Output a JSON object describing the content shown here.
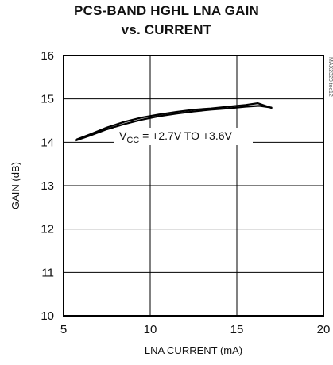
{
  "chart_data": {
    "type": "line",
    "title_line1": "PCS-BAND HGHL LNA GAIN",
    "title_line2": "vs. CURRENT",
    "xlabel": "LNA CURRENT (mA)",
    "ylabel": "GAIN (dB)",
    "xlim": [
      5,
      20
    ],
    "ylim": [
      10,
      16
    ],
    "x_ticks": [
      "5",
      "10",
      "15",
      "20"
    ],
    "y_ticks": [
      "10",
      "11",
      "12",
      "13",
      "14",
      "15",
      "16"
    ],
    "grid": true,
    "annotation": {
      "prefix": "V",
      "subscript": "CC",
      "suffix": " = +2.7V TO +3.6V"
    },
    "side_code": "MAX2320 toc12",
    "series": [
      {
        "x": [
          5.7,
          6.5,
          7.5,
          8.5,
          9.5,
          10.5,
          11.5,
          12.5,
          13.5,
          14.5,
          15.5,
          16.3,
          17.0
        ],
        "y": [
          14.04,
          14.15,
          14.3,
          14.42,
          14.52,
          14.6,
          14.66,
          14.71,
          14.75,
          14.78,
          14.82,
          14.84,
          14.8
        ]
      },
      {
        "x": [
          5.7,
          6.5,
          7.5,
          8.5,
          9.5,
          10.5,
          11.5,
          12.5,
          13.5,
          14.5,
          15.5,
          16.2,
          17.0
        ],
        "y": [
          14.06,
          14.18,
          14.34,
          14.47,
          14.57,
          14.64,
          14.7,
          14.75,
          14.78,
          14.82,
          14.86,
          14.9,
          14.79
        ]
      }
    ]
  }
}
